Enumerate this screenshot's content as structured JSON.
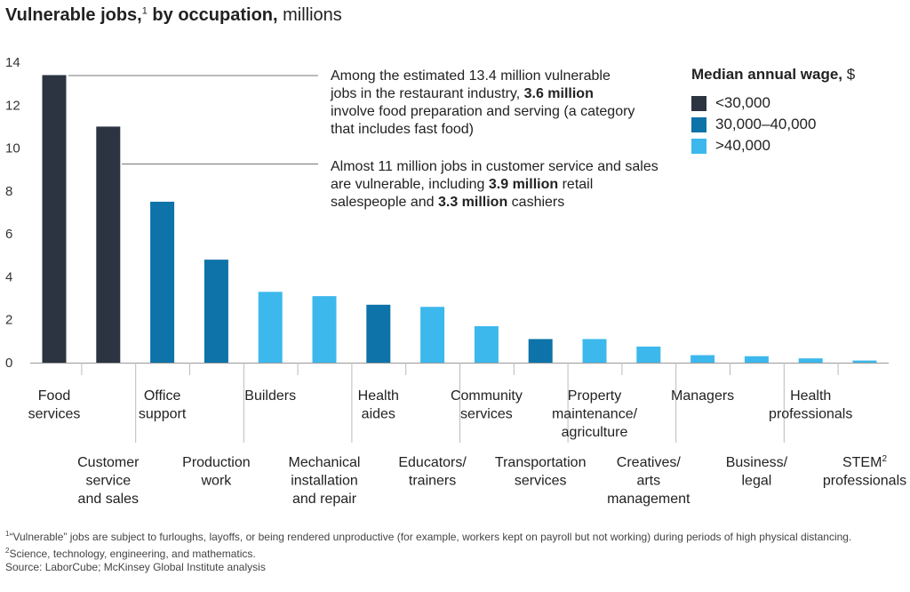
{
  "title": {
    "bold": "Vulnerable jobs,",
    "sup": "1",
    "bold2": " by occupation,",
    "rest": " millions"
  },
  "colors": {
    "low": "#2b3440",
    "mid": "#0d73a8",
    "high": "#3cb8ec",
    "axis": "#999999",
    "leader": "#777777"
  },
  "annotations": [
    {
      "pre": "Among the estimated 13.4 million vulnerable jobs in the restaurant industry, ",
      "bold1": "3.6 million",
      "mid": " involve food preparation and serving (a category that includes fast food)",
      "bold2": "",
      "post": ""
    },
    {
      "pre": "Almost 11 million jobs in customer service and sales are vulnerable, including ",
      "bold1": "3.9 million",
      "mid": " retail salespeople and ",
      "bold2": "3.3 million",
      "post": " cashiers"
    }
  ],
  "legend": {
    "title": "Median annual wage,",
    "unit": " $",
    "items": [
      {
        "label": "<30,000",
        "tier": "low"
      },
      {
        "label": "30,000–40,000",
        "tier": "mid"
      },
      {
        "label": ">40,000",
        "tier": "high"
      }
    ]
  },
  "chart_data": {
    "type": "bar",
    "title": "Vulnerable jobs, by occupation, millions",
    "ylim": [
      0,
      14
    ],
    "yticks": [
      0,
      2,
      4,
      6,
      8,
      10,
      12,
      14
    ],
    "grid": false,
    "categories": [
      {
        "lines": [
          "Food",
          "services"
        ],
        "value": 13.4,
        "tier": "low"
      },
      {
        "lines": [
          "Customer",
          "service",
          "and sales"
        ],
        "value": 11.0,
        "tier": "low"
      },
      {
        "lines": [
          "Office",
          "support"
        ],
        "value": 7.5,
        "tier": "mid"
      },
      {
        "lines": [
          "Production",
          "work"
        ],
        "value": 4.8,
        "tier": "mid"
      },
      {
        "lines": [
          "Builders"
        ],
        "value": 3.3,
        "tier": "high"
      },
      {
        "lines": [
          "Mechanical",
          "installation",
          "and repair"
        ],
        "value": 3.1,
        "tier": "high"
      },
      {
        "lines": [
          "Health",
          "aides"
        ],
        "value": 2.7,
        "tier": "mid"
      },
      {
        "lines": [
          "Educators/",
          "trainers"
        ],
        "value": 2.6,
        "tier": "high"
      },
      {
        "lines": [
          "Community",
          "services"
        ],
        "value": 1.7,
        "tier": "high"
      },
      {
        "lines": [
          "Transportation",
          "services"
        ],
        "value": 1.1,
        "tier": "mid"
      },
      {
        "lines": [
          "Property",
          "maintenance/",
          "agriculture"
        ],
        "value": 1.1,
        "tier": "high"
      },
      {
        "lines": [
          "Creatives/",
          "arts",
          "management"
        ],
        "value": 0.75,
        "tier": "high"
      },
      {
        "lines": [
          "Managers"
        ],
        "value": 0.35,
        "tier": "high"
      },
      {
        "lines": [
          "Business/",
          "legal"
        ],
        "value": 0.3,
        "tier": "high"
      },
      {
        "lines": [
          "Health",
          "professionals"
        ],
        "value": 0.2,
        "tier": "high"
      },
      {
        "lines": [
          "STEM",
          "professionals"
        ],
        "sup": "2",
        "value": 0.1,
        "tier": "high"
      }
    ]
  },
  "footnotes": {
    "n1": "“Vulnerable” jobs are subject to furloughs, layoffs, or being rendered unproductive (for example, workers kept on payroll but not working) during periods of high physical distancing.",
    "n1_sup": "1",
    "n2": "Science, technology, engineering, and mathematics.",
    "n2_sup": "2",
    "source": "Source: LaborCube; McKinsey Global Institute analysis"
  }
}
